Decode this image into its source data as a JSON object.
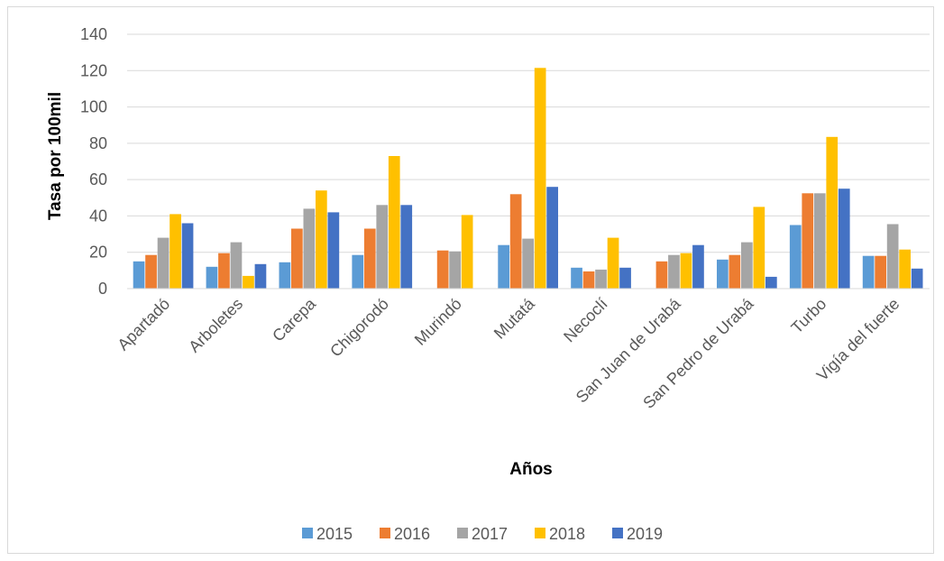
{
  "chart_data": {
    "type": "bar",
    "categories": [
      "Apartadó",
      "Arboletes",
      "Carepa",
      "Chigorodó",
      "Murindó",
      "Mutatá",
      "Necoclí",
      "San Juan de Urabá",
      "San Pedro de Urabá",
      "Turbo",
      "Vigía del fuerte"
    ],
    "series": [
      {
        "name": "2015",
        "color": "#5b9bd5",
        "values": [
          15,
          12,
          14.5,
          18.5,
          0,
          24,
          11.5,
          0,
          16,
          35,
          18
        ]
      },
      {
        "name": "2016",
        "color": "#ed7d31",
        "values": [
          18.5,
          19.5,
          33,
          33,
          21,
          52,
          9.5,
          15,
          18.5,
          52.5,
          18
        ]
      },
      {
        "name": "2017",
        "color": "#a5a5a5",
        "values": [
          28,
          25.5,
          44,
          46,
          20.5,
          27.5,
          10.5,
          18.5,
          25.5,
          52.5,
          35.5
        ]
      },
      {
        "name": "2018",
        "color": "#ffc000",
        "values": [
          41,
          7,
          54,
          73,
          40.5,
          121.5,
          28,
          19.5,
          45,
          83.5,
          21.5
        ]
      },
      {
        "name": "2019",
        "color": "#4472c4",
        "values": [
          36,
          13.5,
          42,
          46,
          0,
          56,
          11.5,
          24,
          6.5,
          55,
          11
        ]
      }
    ],
    "title": "",
    "xlabel": "Años",
    "ylabel": "Tasa por 100mil",
    "ylim": [
      0,
      140
    ],
    "yticks": [
      "0",
      "20",
      "40",
      "60",
      "80",
      "100",
      "120",
      "140"
    ],
    "grid": true,
    "legend_position": "bottom"
  }
}
